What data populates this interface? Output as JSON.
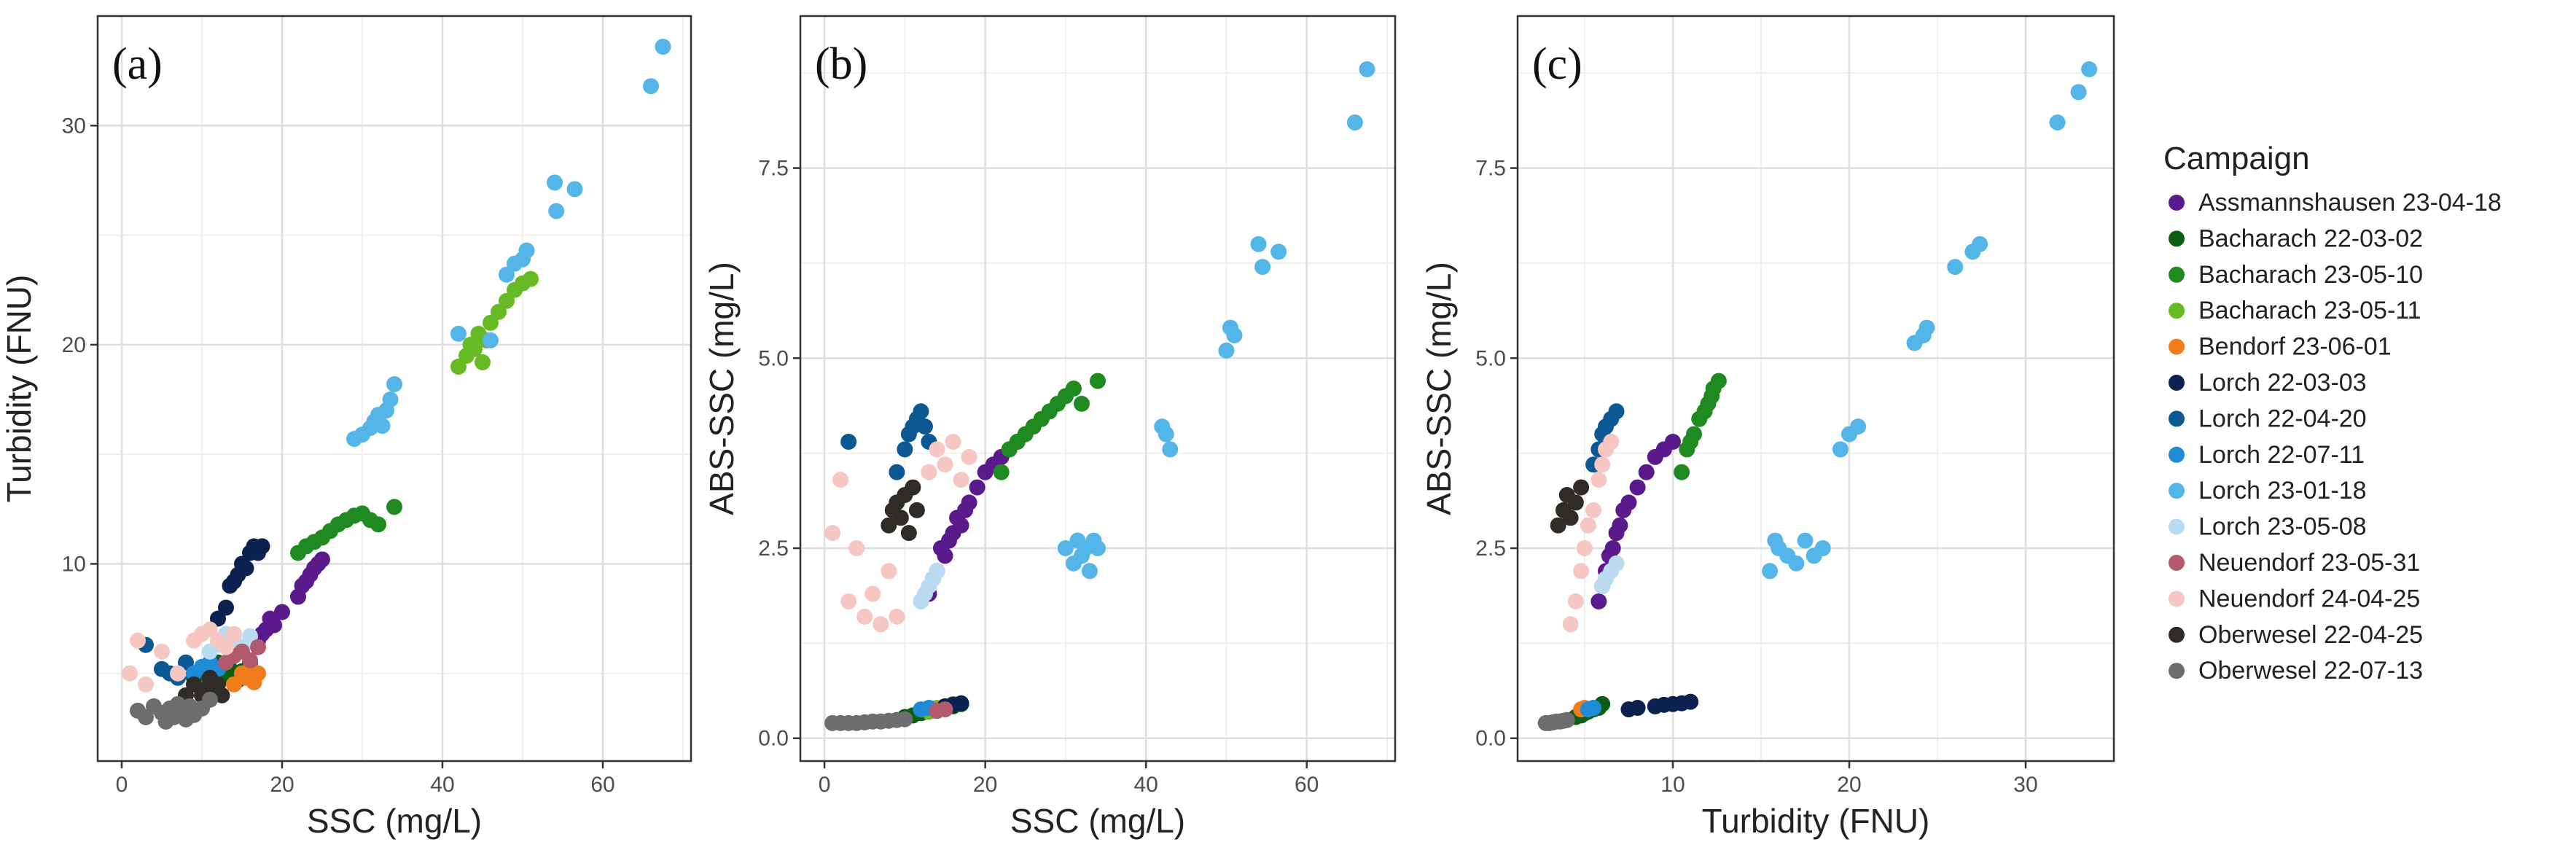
{
  "figure": {
    "legend_title": "Campaign",
    "campaigns": [
      {
        "name": "Assmannshausen 23-04-18",
        "color": "#5b1a8c"
      },
      {
        "name": "Bacharach 22-03-02",
        "color": "#0b5e12"
      },
      {
        "name": "Bacharach 23-05-10",
        "color": "#1f8a1f"
      },
      {
        "name": "Bacharach 23-05-11",
        "color": "#66bb24"
      },
      {
        "name": "Bendorf 23-06-01",
        "color": "#f07c1c"
      },
      {
        "name": "Lorch 22-03-03",
        "color": "#0b2250"
      },
      {
        "name": "Lorch 22-04-20",
        "color": "#0b5892"
      },
      {
        "name": "Lorch 22-07-11",
        "color": "#1f8ad6"
      },
      {
        "name": "Lorch 23-01-18",
        "color": "#54b6e8"
      },
      {
        "name": "Lorch 23-05-08",
        "color": "#b9dbf2"
      },
      {
        "name": "Neuendorf 23-05-31",
        "color": "#b25a6b"
      },
      {
        "name": "Neuendorf 24-04-25",
        "color": "#f6c6c2"
      },
      {
        "name": "Oberwesel 22-04-25",
        "color": "#2f2b27"
      },
      {
        "name": "Oberwesel 22-07-13",
        "color": "#6d6d6d"
      }
    ]
  },
  "chart_data": [
    {
      "type": "scatter",
      "panel_label": "(a)",
      "xlabel": "SSC (mg/L)",
      "ylabel": "Turbidity (FNU)",
      "xlim": [
        -3,
        71
      ],
      "ylim": [
        1,
        35
      ],
      "xticks": [
        0,
        20,
        40,
        60
      ],
      "xtick_labels": [
        "0",
        "20",
        "40",
        "60"
      ],
      "yticks": [
        10,
        20,
        30
      ],
      "ytick_labels": [
        "10",
        "20",
        "30"
      ],
      "grid": true,
      "series": [
        {
          "name": "Assmannshausen 23-04-18",
          "x": [
            16,
            17,
            18,
            18.5,
            19,
            20,
            22,
            22.5,
            23,
            23.5,
            24,
            24.5,
            25,
            17.5
          ],
          "y": [
            5.5,
            6.5,
            7,
            7.5,
            7.2,
            7.8,
            8.5,
            9,
            9.2,
            9.5,
            9.8,
            10,
            10.2,
            6.8
          ]
        },
        {
          "name": "Bacharach 22-03-02",
          "x": [
            9,
            10,
            10.5,
            11,
            12,
            12.5,
            13,
            13.5,
            14,
            14.5,
            15
          ],
          "y": [
            4.8,
            5,
            5.3,
            4.5,
            5.5,
            5,
            4.8,
            5.2,
            5,
            4.7,
            5.1
          ]
        },
        {
          "name": "Bacharach 23-05-10",
          "x": [
            22,
            23,
            24,
            25,
            26,
            27,
            28,
            29,
            30,
            31,
            32,
            34
          ],
          "y": [
            10.5,
            10.8,
            11,
            11.2,
            11.5,
            11.8,
            12,
            12.2,
            12.3,
            12,
            11.8,
            12.6
          ]
        },
        {
          "name": "Bacharach 23-05-11",
          "x": [
            42,
            43,
            43.5,
            44,
            44.5,
            45,
            45.5,
            46,
            47,
            48,
            49,
            50,
            51
          ],
          "y": [
            19,
            19.5,
            20,
            19.8,
            20.5,
            19.2,
            20.2,
            21,
            21.5,
            22,
            22.5,
            22.8,
            23
          ]
        },
        {
          "name": "Bendorf 23-06-01",
          "x": [
            14,
            15,
            15.5,
            16,
            16.5,
            17
          ],
          "y": [
            4.5,
            5,
            4.8,
            5.2,
            4.6,
            5
          ]
        },
        {
          "name": "Lorch 22-03-03",
          "x": [
            12,
            13,
            13.5,
            14,
            14.5,
            15,
            15.5,
            16,
            16.5,
            17,
            17.5
          ],
          "y": [
            7.5,
            8,
            9,
            9.2,
            9.5,
            10,
            9.8,
            10.5,
            10.8,
            10.5,
            10.8
          ]
        },
        {
          "name": "Lorch 22-04-20",
          "x": [
            3,
            5,
            6,
            7,
            8,
            9,
            10,
            11,
            12
          ],
          "y": [
            6.3,
            5.2,
            5,
            4.8,
            5.5,
            5,
            5.2,
            4.9,
            5.3
          ]
        },
        {
          "name": "Lorch 22-07-11",
          "x": [
            9,
            10,
            11,
            12
          ],
          "y": [
            5,
            5.3,
            5.5,
            5.2
          ]
        },
        {
          "name": "Lorch 23-01-18",
          "x": [
            29,
            30,
            31,
            31.5,
            32,
            32.5,
            33,
            33.5,
            34,
            42,
            46,
            48,
            49,
            50,
            50.5,
            54,
            54.2,
            56.5,
            66,
            67.5
          ],
          "y": [
            15.7,
            15.9,
            16.2,
            16.5,
            16.8,
            16.3,
            17,
            17.5,
            18.2,
            20.5,
            20.2,
            23.2,
            23.7,
            23.9,
            24.3,
            27.4,
            26.1,
            27.1,
            31.8,
            33.6
          ]
        },
        {
          "name": "Lorch 23-05-08",
          "x": [
            11,
            12,
            13,
            14,
            15,
            16
          ],
          "y": [
            6,
            6.3,
            6.8,
            6.5,
            6.2,
            6.7
          ]
        },
        {
          "name": "Neuendorf 23-05-31",
          "x": [
            13,
            14,
            15,
            16,
            17
          ],
          "y": [
            5.5,
            5.8,
            6,
            5.6,
            6.2
          ]
        },
        {
          "name": "Neuendorf 24-04-25",
          "x": [
            1,
            2,
            3,
            5,
            7,
            9,
            10,
            11,
            12,
            13,
            14
          ],
          "y": [
            5,
            6.5,
            4.5,
            6,
            5,
            6.5,
            6.8,
            7,
            6.5,
            6.2,
            6.8
          ]
        },
        {
          "name": "Oberwesel 22-04-25",
          "x": [
            8,
            9,
            10,
            10.5,
            11,
            11.5,
            12,
            12.5
          ],
          "y": [
            4,
            4.5,
            4,
            4.3,
            4.8,
            4.2,
            4.5,
            4
          ]
        },
        {
          "name": "Oberwesel 22-07-13",
          "x": [
            2,
            3,
            4,
            5,
            5.5,
            6,
            6.5,
            7,
            7.5,
            8,
            8.5,
            9,
            10,
            11
          ],
          "y": [
            3.3,
            3,
            3.5,
            3.2,
            2.8,
            3.4,
            3,
            3.6,
            3.2,
            2.9,
            3.5,
            3.1,
            3.4,
            3.8
          ]
        }
      ]
    },
    {
      "type": "scatter",
      "panel_label": "(b)",
      "xlabel": "SSC (mg/L)",
      "ylabel": "ABS-SSC (mg/L)",
      "xlim": [
        -3,
        71
      ],
      "ylim": [
        -0.3,
        9.5
      ],
      "xticks": [
        0,
        20,
        40,
        60
      ],
      "xtick_labels": [
        "0",
        "20",
        "40",
        "60"
      ],
      "yticks": [
        0,
        2.5,
        5,
        7.5
      ],
      "ytick_labels": [
        "0.0",
        "2.5",
        "5.0",
        "7.5"
      ],
      "grid": true,
      "series": [
        {
          "name": "Assmannshausen 23-04-18",
          "x": [
            13,
            13.5,
            14,
            14.5,
            15,
            15.5,
            16,
            16.5,
            17,
            17.5,
            18,
            19,
            20,
            21,
            22,
            23,
            24
          ],
          "y": [
            1.9,
            2.1,
            2.2,
            2.5,
            2.4,
            2.6,
            2.7,
            2.9,
            2.8,
            3.0,
            3.1,
            3.3,
            3.5,
            3.6,
            3.7,
            3.8,
            3.9
          ]
        },
        {
          "name": "Bacharach 22-03-02",
          "x": [
            10,
            11,
            12,
            13,
            14,
            15,
            16,
            17
          ],
          "y": [
            0.28,
            0.3,
            0.33,
            0.35,
            0.38,
            0.4,
            0.42,
            0.45
          ]
        },
        {
          "name": "Bacharach 23-05-10",
          "x": [
            22,
            23,
            24,
            25,
            26,
            27,
            28,
            29,
            30,
            31,
            32,
            34
          ],
          "y": [
            3.5,
            3.8,
            3.9,
            4.0,
            4.1,
            4.2,
            4.3,
            4.4,
            4.5,
            4.6,
            4.4,
            4.7
          ]
        },
        {
          "name": "Bacharach 23-05-11",
          "x": [
            13,
            14,
            15,
            16
          ],
          "y": [
            0.35,
            0.4,
            0.42,
            0.45
          ]
        },
        {
          "name": "Bendorf 23-06-01",
          "x": [
            14,
            15
          ],
          "y": [
            0.38,
            0.4
          ]
        },
        {
          "name": "Lorch 22-03-03",
          "x": [
            15,
            16,
            17
          ],
          "y": [
            0.42,
            0.44,
            0.46
          ]
        },
        {
          "name": "Lorch 22-04-20",
          "x": [
            3,
            9,
            10,
            10.5,
            11,
            11.5,
            12,
            12.5,
            13
          ],
          "y": [
            3.9,
            3.5,
            3.8,
            4.0,
            4.1,
            4.2,
            4.3,
            4.1,
            3.9
          ]
        },
        {
          "name": "Lorch 22-07-11",
          "x": [
            12,
            13
          ],
          "y": [
            0.38,
            0.4
          ]
        },
        {
          "name": "Lorch 23-01-18",
          "x": [
            30,
            31,
            31.5,
            32,
            32.5,
            33,
            33.5,
            34,
            42,
            42.5,
            43,
            50,
            50.5,
            51,
            54,
            54.5,
            56.5,
            66,
            67.5
          ],
          "y": [
            2.5,
            2.3,
            2.6,
            2.4,
            2.5,
            2.2,
            2.6,
            2.5,
            4.1,
            4.0,
            3.8,
            5.1,
            5.4,
            5.3,
            6.5,
            6.2,
            6.4,
            8.1,
            8.8
          ]
        },
        {
          "name": "Lorch 23-05-08",
          "x": [
            12,
            12.5,
            13,
            13.5,
            14
          ],
          "y": [
            1.8,
            1.9,
            2.0,
            2.1,
            2.2
          ]
        },
        {
          "name": "Neuendorf 23-05-31",
          "x": [
            14,
            15
          ],
          "y": [
            0.36,
            0.38
          ]
        },
        {
          "name": "Neuendorf 24-04-25",
          "x": [
            1,
            2,
            3,
            4,
            5,
            6,
            7,
            8,
            9,
            13,
            14,
            15,
            16,
            17,
            18
          ],
          "y": [
            2.7,
            3.4,
            1.8,
            2.5,
            1.6,
            1.9,
            1.5,
            2.2,
            1.6,
            3.5,
            3.8,
            3.6,
            3.9,
            3.4,
            3.7
          ]
        },
        {
          "name": "Oberwesel 22-04-25",
          "x": [
            8,
            8.5,
            9,
            9.5,
            10,
            10.5,
            11,
            11.5
          ],
          "y": [
            2.8,
            3.0,
            3.1,
            2.9,
            3.2,
            2.7,
            3.3,
            3.0
          ]
        },
        {
          "name": "Oberwesel 22-07-13",
          "x": [
            1,
            2,
            3,
            4,
            5,
            6,
            7,
            8,
            9,
            10
          ],
          "y": [
            0.2,
            0.2,
            0.2,
            0.2,
            0.21,
            0.22,
            0.22,
            0.23,
            0.24,
            0.25
          ]
        }
      ]
    },
    {
      "type": "scatter",
      "panel_label": "(c)",
      "xlabel": "Turbidity (FNU)",
      "ylabel": "ABS-SSC (mg/L)",
      "xlim": [
        1.2,
        35
      ],
      "ylim": [
        -0.3,
        9.5
      ],
      "xticks": [
        10,
        20,
        30
      ],
      "xtick_labels": [
        "10",
        "20",
        "30"
      ],
      "yticks": [
        0,
        2.5,
        5,
        7.5
      ],
      "ytick_labels": [
        "0.0",
        "2.5",
        "5.0",
        "7.5"
      ],
      "grid": true,
      "series": [
        {
          "name": "Assmannshausen 23-04-18",
          "x": [
            5.8,
            6,
            6.2,
            6.4,
            6.6,
            6.8,
            7,
            7.2,
            7.5,
            8,
            8.5,
            9,
            9.5,
            10
          ],
          "y": [
            1.8,
            2.0,
            2.2,
            2.4,
            2.5,
            2.7,
            2.8,
            3.0,
            3.1,
            3.3,
            3.5,
            3.7,
            3.8,
            3.9
          ]
        },
        {
          "name": "Bacharach 22-03-02",
          "x": [
            4.5,
            4.8,
            5,
            5.2,
            5.5,
            5.8,
            6
          ],
          "y": [
            0.28,
            0.3,
            0.33,
            0.35,
            0.38,
            0.4,
            0.45
          ]
        },
        {
          "name": "Bacharach 23-05-10",
          "x": [
            10.5,
            10.8,
            11,
            11.2,
            11.5,
            11.8,
            12,
            12.2,
            12.3,
            12.6
          ],
          "y": [
            3.5,
            3.8,
            3.9,
            4.0,
            4.2,
            4.3,
            4.4,
            4.5,
            4.6,
            4.7
          ]
        },
        {
          "name": "Bendorf 23-06-01",
          "x": [
            4.8,
            5
          ],
          "y": [
            0.38,
            0.4
          ]
        },
        {
          "name": "Lorch 22-03-03",
          "x": [
            7.5,
            8,
            9,
            9.5,
            10,
            10.5,
            11
          ],
          "y": [
            0.38,
            0.4,
            0.42,
            0.44,
            0.45,
            0.46,
            0.48
          ]
        },
        {
          "name": "Lorch 22-04-20",
          "x": [
            5.5,
            5.8,
            6,
            6.2,
            6.5,
            6.8
          ],
          "y": [
            3.6,
            3.8,
            4.0,
            4.1,
            4.2,
            4.3
          ]
        },
        {
          "name": "Lorch 22-07-11",
          "x": [
            5.2,
            5.5
          ],
          "y": [
            0.38,
            0.4
          ]
        },
        {
          "name": "Lorch 23-01-18",
          "x": [
            15.5,
            16,
            16.5,
            17,
            17.5,
            18,
            18.5,
            15.8,
            19.5,
            20,
            20.5,
            23.7,
            24.2,
            24.4,
            26,
            27,
            27.4,
            31.8,
            33,
            33.6
          ],
          "y": [
            2.2,
            2.5,
            2.4,
            2.3,
            2.6,
            2.4,
            2.5,
            2.6,
            3.8,
            4.0,
            4.1,
            5.2,
            5.3,
            5.4,
            6.2,
            6.4,
            6.5,
            8.1,
            8.5,
            8.8
          ]
        },
        {
          "name": "Lorch 23-05-08",
          "x": [
            6,
            6.2,
            6.5,
            6.8
          ],
          "y": [
            2.0,
            2.1,
            2.2,
            2.3
          ]
        },
        {
          "name": "Neuendorf 24-04-25",
          "x": [
            4.2,
            4.5,
            4.8,
            5,
            5.2,
            5.5,
            5.8,
            6,
            6.2,
            6.5
          ],
          "y": [
            1.5,
            1.8,
            2.2,
            2.5,
            2.8,
            3.0,
            3.4,
            3.6,
            3.8,
            3.9
          ]
        },
        {
          "name": "Oberwesel 22-04-25",
          "x": [
            3.5,
            3.8,
            4,
            4.2,
            4.5,
            4.8
          ],
          "y": [
            2.8,
            3.0,
            3.2,
            2.9,
            3.1,
            3.3
          ]
        },
        {
          "name": "Oberwesel 22-07-13",
          "x": [
            2.8,
            3,
            3.2,
            3.4,
            3.6,
            3.8,
            4
          ],
          "y": [
            0.2,
            0.2,
            0.21,
            0.22,
            0.22,
            0.23,
            0.24
          ]
        }
      ]
    }
  ]
}
